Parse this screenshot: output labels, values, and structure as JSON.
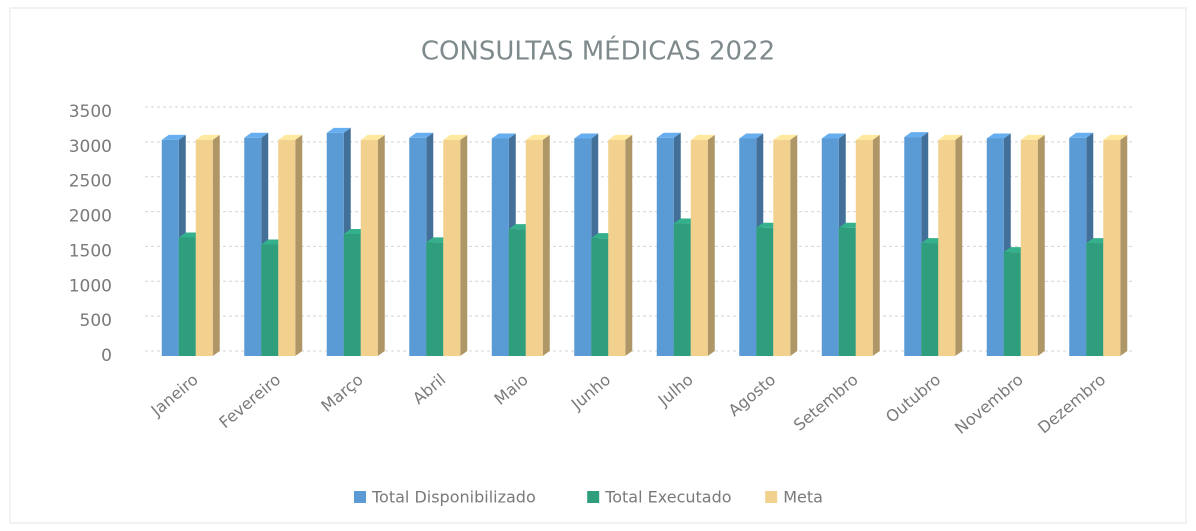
{
  "chart_data": {
    "type": "bar3d",
    "title": "CONSULTAS MÉDICAS 2022",
    "categories": [
      "Janeiro",
      "Fevereiro",
      "Março",
      "Abril",
      "Maio",
      "Junho",
      "Julho",
      "Agosto",
      "Setembro",
      "Outubro",
      "Novembro",
      "Dezembro"
    ],
    "series": [
      {
        "name": "Total Disponibilizado",
        "color": "#5b9bd5",
        "values": [
          3100,
          3130,
          3200,
          3130,
          3120,
          3120,
          3130,
          3120,
          3120,
          3140,
          3120,
          3130
        ]
      },
      {
        "name": "Total Executado",
        "color": "#2e9e7d",
        "values": [
          1700,
          1600,
          1750,
          1630,
          1820,
          1690,
          1900,
          1840,
          1840,
          1620,
          1490,
          1620
        ]
      },
      {
        "name": "Meta",
        "color": "#f2d08e",
        "values": [
          3100,
          3100,
          3100,
          3100,
          3100,
          3100,
          3100,
          3100,
          3100,
          3100,
          3100,
          3100
        ]
      }
    ],
    "ylim": [
      0,
      3500
    ],
    "yticks": [
      0,
      500,
      1000,
      1500,
      2000,
      2500,
      3000,
      3500
    ],
    "grid": true,
    "legend": "bottom"
  }
}
